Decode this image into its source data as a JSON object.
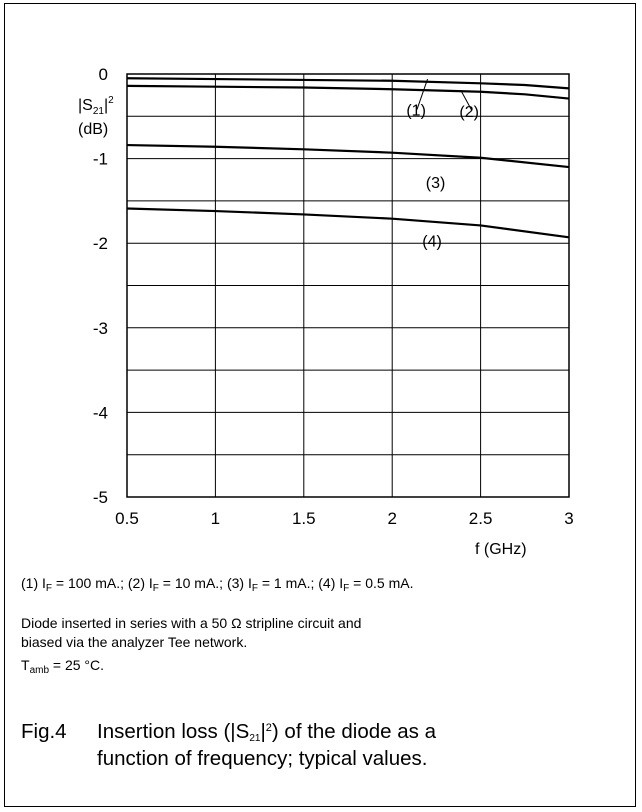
{
  "chart_data": {
    "type": "line",
    "x_label": "f (GHz)",
    "y_label_lines": [
      "|S21|2",
      "(dB)"
    ],
    "xlim": [
      0.5,
      3
    ],
    "ylim": [
      -5,
      0
    ],
    "x_ticks": [
      "0.5",
      "1",
      "1.5",
      "2",
      "2.5",
      "3"
    ],
    "y_ticks": [
      "0",
      "-1",
      "-2",
      "-3",
      "-4",
      "-5"
    ],
    "grid": true,
    "series": [
      {
        "name": "(1)",
        "x": [
          0.5,
          1,
          1.5,
          2,
          2.5,
          2.75,
          3
        ],
        "y": [
          -0.05,
          -0.06,
          -0.07,
          -0.08,
          -0.11,
          -0.13,
          -0.17
        ]
      },
      {
        "name": "(2)",
        "x": [
          0.5,
          1,
          1.5,
          2,
          2.5,
          2.75,
          3
        ],
        "y": [
          -0.14,
          -0.15,
          -0.16,
          -0.18,
          -0.21,
          -0.24,
          -0.29
        ]
      },
      {
        "name": "(3)",
        "x": [
          0.5,
          1,
          1.5,
          2,
          2.5,
          3
        ],
        "y": [
          -0.84,
          -0.86,
          -0.89,
          -0.93,
          -0.99,
          -1.1
        ]
      },
      {
        "name": "(4)",
        "x": [
          0.5,
          1,
          1.5,
          2,
          2.5,
          3
        ],
        "y": [
          -1.59,
          -1.62,
          -1.66,
          -1.71,
          -1.79,
          -1.93
        ]
      }
    ]
  },
  "legend_note": {
    "p1": "(1) I",
    "s1": "F",
    "t1": " = 100 mA.; (2) I",
    "s2": "F",
    "t2": " = 10 mA.; (3) I",
    "s3": "F",
    "t3": " = 1 mA.; (4) I",
    "s4": "F",
    "t4": " = 0.5 mA."
  },
  "notes": {
    "circuit_line1": "Diode inserted in series with a 50 Ω stripline circuit and",
    "circuit_line2": "biased via the analyzer Tee network.",
    "temp_T": "T",
    "temp_sub": "amb",
    "temp_rest": " = 25 °C."
  },
  "caption": {
    "fig": "Fig.4",
    "line1_a": "Insertion loss (|S",
    "line1_sub": "21",
    "line1_b": "|",
    "line1_sup": "2",
    "line1_c": ") of the diode as a",
    "line2": "function of frequency; typical values."
  }
}
